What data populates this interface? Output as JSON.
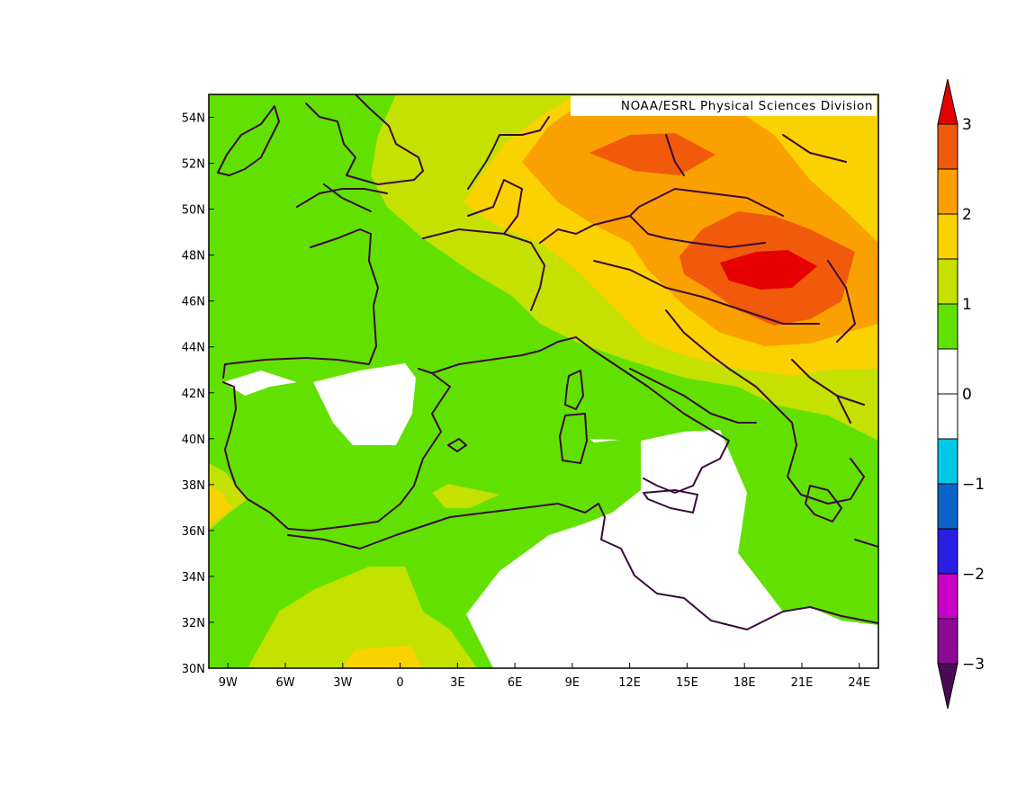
{
  "credit": "NOAA/ESRL Physical Sciences Division",
  "map": {
    "lon_range": [
      -10,
      25
    ],
    "lat_range": [
      30,
      55
    ],
    "x_ticks": [
      {
        "lon": -9,
        "label": "9W"
      },
      {
        "lon": -6,
        "label": "6W"
      },
      {
        "lon": -3,
        "label": "3W"
      },
      {
        "lon": 0,
        "label": "0"
      },
      {
        "lon": 3,
        "label": "3E"
      },
      {
        "lon": 6,
        "label": "6E"
      },
      {
        "lon": 9,
        "label": "9E"
      },
      {
        "lon": 12,
        "label": "12E"
      },
      {
        "lon": 15,
        "label": "15E"
      },
      {
        "lon": 18,
        "label": "18E"
      },
      {
        "lon": 21,
        "label": "21E"
      },
      {
        "lon": 24,
        "label": "24E"
      }
    ],
    "y_ticks": [
      {
        "lat": 30,
        "label": "30N"
      },
      {
        "lat": 32,
        "label": "32N"
      },
      {
        "lat": 34,
        "label": "34N"
      },
      {
        "lat": 36,
        "label": "36N"
      },
      {
        "lat": 38,
        "label": "38N"
      },
      {
        "lat": 40,
        "label": "40N"
      },
      {
        "lat": 42,
        "label": "42N"
      },
      {
        "lat": 44,
        "label": "44N"
      },
      {
        "lat": 46,
        "label": "46N"
      },
      {
        "lat": 48,
        "label": "48N"
      },
      {
        "lat": 50,
        "label": "50N"
      },
      {
        "lat": 52,
        "label": "52N"
      },
      {
        "lat": 54,
        "label": "54N"
      }
    ]
  },
  "colorbar": {
    "bins": [
      {
        "from": 2.5,
        "to": 3,
        "color": "#f05a0a"
      },
      {
        "from": 2,
        "to": 2.5,
        "color": "#faa000"
      },
      {
        "from": 1.5,
        "to": 2,
        "color": "#fad200"
      },
      {
        "from": 1,
        "to": 1.5,
        "color": "#c4e100"
      },
      {
        "from": 0.5,
        "to": 1,
        "color": "#62e100"
      },
      {
        "from": 0,
        "to": 0.5,
        "color": "#ffffff"
      },
      {
        "from": -0.5,
        "to": 0,
        "color": "#ffffff"
      },
      {
        "from": -1,
        "to": -0.5,
        "color": "#00c8e6"
      },
      {
        "from": -1.5,
        "to": -1,
        "color": "#0a64c8"
      },
      {
        "from": -2,
        "to": -1.5,
        "color": "#2a1ee6"
      },
      {
        "from": -2.5,
        "to": -2,
        "color": "#c800c8"
      },
      {
        "from": -3,
        "to": -2.5,
        "color": "#8c0a96"
      }
    ],
    "over_color": "#e60000",
    "under_color": "#4b0a55",
    "tick_labels": [
      {
        "value": 3,
        "label": "3"
      },
      {
        "value": 2,
        "label": "2"
      },
      {
        "value": 1,
        "label": "1"
      },
      {
        "value": 0,
        "label": "0"
      },
      {
        "value": -1,
        "label": "−1"
      },
      {
        "value": -2,
        "label": "−2"
      },
      {
        "value": -3,
        "label": "−3"
      }
    ]
  },
  "colors": {
    "green": "#62e100",
    "lime": "#c4e100",
    "yellow": "#fad200",
    "orange": "#faa000",
    "dark_orange": "#f05a0a",
    "red": "#e60000",
    "white": "#ffffff",
    "coastline": "#3a0a3a"
  }
}
